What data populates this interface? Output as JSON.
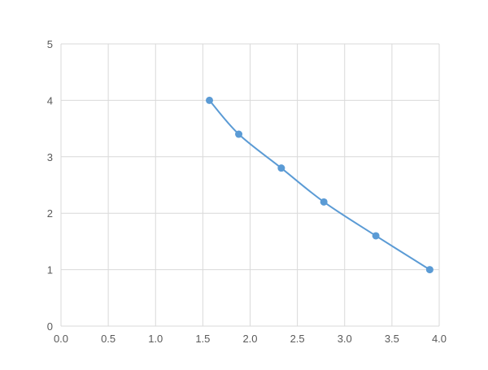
{
  "chart_data": {
    "type": "line",
    "title": "",
    "xlabel": "",
    "ylabel": "",
    "xlim": [
      0,
      4.0
    ],
    "ylim": [
      0,
      5
    ],
    "x_ticks": [
      "0.0",
      "0.5",
      "1.0",
      "1.5",
      "2.0",
      "2.5",
      "3.0",
      "3.5",
      "4.0"
    ],
    "y_ticks": [
      "0",
      "1",
      "2",
      "3",
      "4",
      "5"
    ],
    "grid": true,
    "smooth": true,
    "markers": true,
    "series": [
      {
        "color": "#5B9BD5",
        "x": [
          1.57,
          1.88,
          2.33,
          2.78,
          3.33,
          3.9
        ],
        "y": [
          4.0,
          3.4,
          2.8,
          2.2,
          1.6,
          1.0
        ]
      }
    ]
  }
}
